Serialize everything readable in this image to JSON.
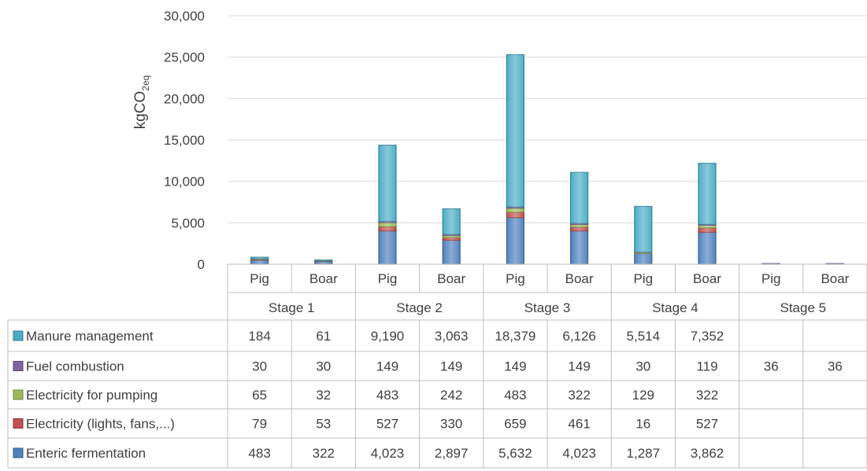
{
  "chart_data": {
    "type": "bar",
    "stacked": true,
    "ylabel_main": "kgCO",
    "ylabel_sub": "2eq",
    "ylim": [
      0,
      30000
    ],
    "yticks": [
      "0",
      "5,000",
      "10,000",
      "15,000",
      "20,000",
      "25,000",
      "30,000"
    ],
    "groups": [
      "Stage 1",
      "Stage 2",
      "Stage 3",
      "Stage 4",
      "Stage 5"
    ],
    "categories": [
      "Pig",
      "Boar",
      "Pig",
      "Boar",
      "Pig",
      "Boar",
      "Pig",
      "Boar",
      "Pig",
      "Boar"
    ],
    "series": [
      {
        "name": "Enteric fermentation",
        "color": "#4f81bd",
        "values": [
          483,
          322,
          4023,
          2897,
          5632,
          4023,
          1287,
          3862,
          null,
          null
        ],
        "labels": [
          "483",
          "322",
          "4,023",
          "2,897",
          "5,632",
          "4,023",
          "1,287",
          "3,862",
          "",
          ""
        ]
      },
      {
        "name": "Electricity (lights, fans,...)",
        "color": "#c0504d",
        "values": [
          79,
          53,
          527,
          330,
          659,
          461,
          16,
          527,
          null,
          null
        ],
        "labels": [
          "79",
          "53",
          "527",
          "330",
          "659",
          "461",
          "16",
          "527",
          "",
          ""
        ]
      },
      {
        "name": "Electricity for pumping",
        "color": "#9bbb59",
        "values": [
          65,
          32,
          483,
          242,
          483,
          322,
          129,
          322,
          null,
          null
        ],
        "labels": [
          "65",
          "32",
          "483",
          "242",
          "483",
          "322",
          "129",
          "322",
          "",
          ""
        ]
      },
      {
        "name": "Fuel combustion",
        "color": "#8064a2",
        "values": [
          30,
          30,
          149,
          149,
          149,
          149,
          30,
          119,
          36,
          36
        ],
        "labels": [
          "30",
          "30",
          "149",
          "149",
          "149",
          "149",
          "30",
          "119",
          "36",
          "36"
        ]
      },
      {
        "name": "Manure management",
        "color": "#4bacc6",
        "values": [
          184,
          61,
          9190,
          3063,
          18379,
          6126,
          5514,
          7352,
          null,
          null
        ],
        "labels": [
          "184",
          "61",
          "9,190",
          "3,063",
          "18,379",
          "6,126",
          "5,514",
          "7,352",
          "",
          ""
        ]
      }
    ],
    "grid": true,
    "legend": "data-table"
  }
}
